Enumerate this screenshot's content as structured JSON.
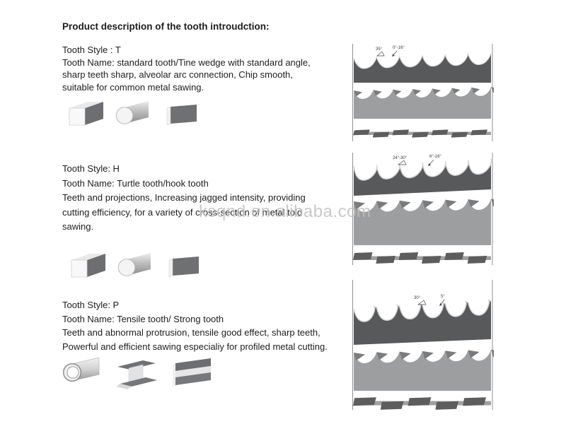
{
  "page": {
    "title": "Product description of the tooth introudction:"
  },
  "watermark": {
    "text": "ksqnd.en.alibaba.com"
  },
  "colors": {
    "blade_dark": "#58595b",
    "blade_mid": "#9d9e9f",
    "blade_crest": "#7a7b7d",
    "edge_highlight": "#d6d6d6",
    "bar_base": "#a0a0a0",
    "bar_segment": "#5d5d5d",
    "text": "#1d1d1d",
    "watermark": "#c0c0c0"
  },
  "sections": [
    {
      "id": "T",
      "lines": [
        "Tooth Style :  T",
        "Tooth Name: standard tooth/Tine wedge with standard angle,",
        "sharp teeth sharp, alveolar arc connection, Chip smooth,",
        "suitable for common metal sawing."
      ],
      "icons": [
        "square-bar-icon",
        "round-bar-icon",
        "flat-bar-icon"
      ],
      "figure": {
        "annotations": [
          "35°",
          "0°-16°"
        ]
      }
    },
    {
      "id": "H",
      "lines": [
        "Tooth Style: H",
        "Tooth Name: Turtle tooth/hook tooth",
        "Teeth and projections, Increasing jagged intensity, providing",
        "cutting efficiency, for a variety of cross-section of metal told",
        "sawing."
      ],
      "icons": [
        "square-bar-icon",
        "round-bar-icon",
        "flat-bar-icon"
      ],
      "figure": {
        "annotations": [
          "24°-30°",
          "6°-16°"
        ]
      }
    },
    {
      "id": "P",
      "lines": [
        "Tooth Style: P",
        "Tooth Name: Tensile tooth/ Strong tooth",
        "Teeth and abnormal protrusion, tensile good effect, sharp teeth,",
        "Powerful and efficient sawing especialiy for profiled metal cutting."
      ],
      "icons": [
        "pipe-icon",
        "channel-beam-icon",
        "h-beam-icon"
      ],
      "figure": {
        "annotations": [
          "30°",
          "5°"
        ]
      }
    }
  ]
}
